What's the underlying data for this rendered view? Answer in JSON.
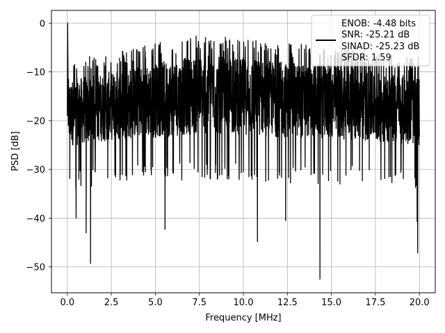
{
  "chart_data": {
    "type": "line",
    "title": "",
    "xlabel": "Frequency [MHz]",
    "ylabel": "PSD [dB]",
    "xlim": [
      -0.9,
      20.9
    ],
    "ylim": [
      -55.3,
      2.6
    ],
    "x_ticks": [
      0.0,
      2.5,
      5.0,
      7.5,
      10.0,
      12.5,
      15.0,
      17.5,
      20.0
    ],
    "x_tick_labels": [
      "0.0",
      "2.5",
      "5.0",
      "7.5",
      "10.0",
      "12.5",
      "15.0",
      "17.5",
      "20.0"
    ],
    "y_ticks": [
      0,
      -10,
      -20,
      -30,
      -40,
      -50
    ],
    "y_tick_labels": [
      "0",
      "−10",
      "−20",
      "−30",
      "−40",
      "−50"
    ],
    "grid": true,
    "legend_position": "top-right",
    "legend": {
      "entries": [
        "ENOB: -4.48 bits",
        "SNR: -25.21 dB",
        "SINAD: -25.23 dB",
        "SFDR: 1.59"
      ]
    },
    "series": [
      {
        "color": "#000000",
        "style": "noise-psd",
        "x_range": [
          0.0,
          20.0
        ],
        "peak": [
          0.02,
          0.0
        ],
        "typical_band_db": [
          -28,
          -8
        ],
        "upper_envelope_db": [
          [
            0.3,
            -10.5
          ],
          [
            2.5,
            -9.0
          ],
          [
            5.0,
            -7.0
          ],
          [
            7.5,
            -5.5
          ],
          [
            10.0,
            -6.0
          ],
          [
            12.5,
            -7.0
          ],
          [
            15.0,
            -7.5
          ],
          [
            17.5,
            -9.0
          ],
          [
            20.0,
            -10.0
          ]
        ],
        "lower_envelope_db": [
          [
            0.3,
            -30.0
          ],
          [
            2.5,
            -29.0
          ],
          [
            5.0,
            -29.0
          ],
          [
            7.5,
            -28.5
          ],
          [
            10.0,
            -28.5
          ],
          [
            12.5,
            -29.0
          ],
          [
            15.0,
            -29.0
          ],
          [
            17.5,
            -29.5
          ],
          [
            20.0,
            -30.0
          ]
        ],
        "notable_dips": [
          {
            "x": 0.5,
            "y": -40.0
          },
          {
            "x": 1.07,
            "y": -43.0
          },
          {
            "x": 1.32,
            "y": -49.3
          },
          {
            "x": 5.55,
            "y": -42.3
          },
          {
            "x": 10.8,
            "y": -44.8
          },
          {
            "x": 12.4,
            "y": -40.5
          },
          {
            "x": 14.35,
            "y": -52.5
          },
          {
            "x": 19.87,
            "y": -40.7
          },
          {
            "x": 19.9,
            "y": -47.1
          }
        ]
      }
    ]
  }
}
